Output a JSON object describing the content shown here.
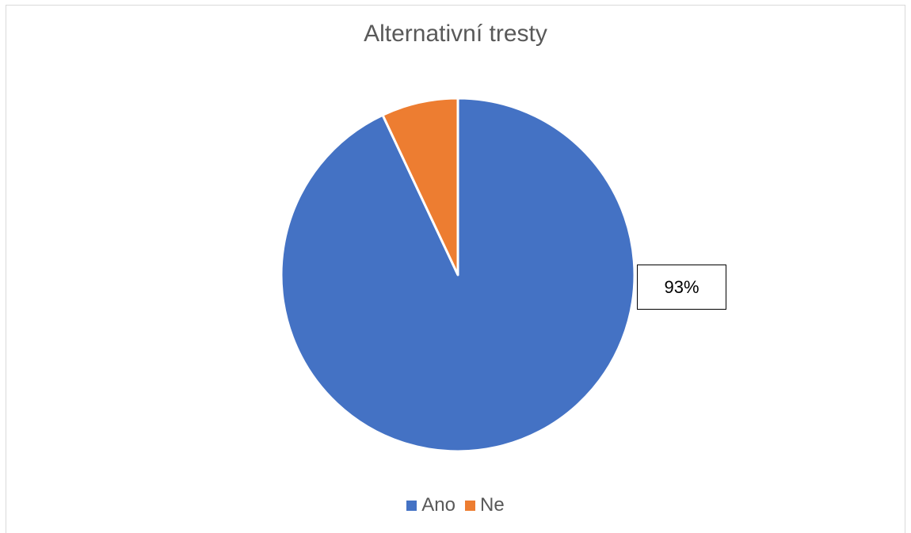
{
  "chart_data": {
    "type": "pie",
    "title": "Alternativní tresty",
    "categories": [
      "Ano",
      "Ne"
    ],
    "values": [
      93,
      7
    ],
    "colors": [
      "#4472c4",
      "#ed7d31"
    ],
    "data_labels": [
      "93%",
      ""
    ],
    "legend_position": "bottom",
    "start_angle_deg": 0,
    "direction": "clockwise"
  }
}
